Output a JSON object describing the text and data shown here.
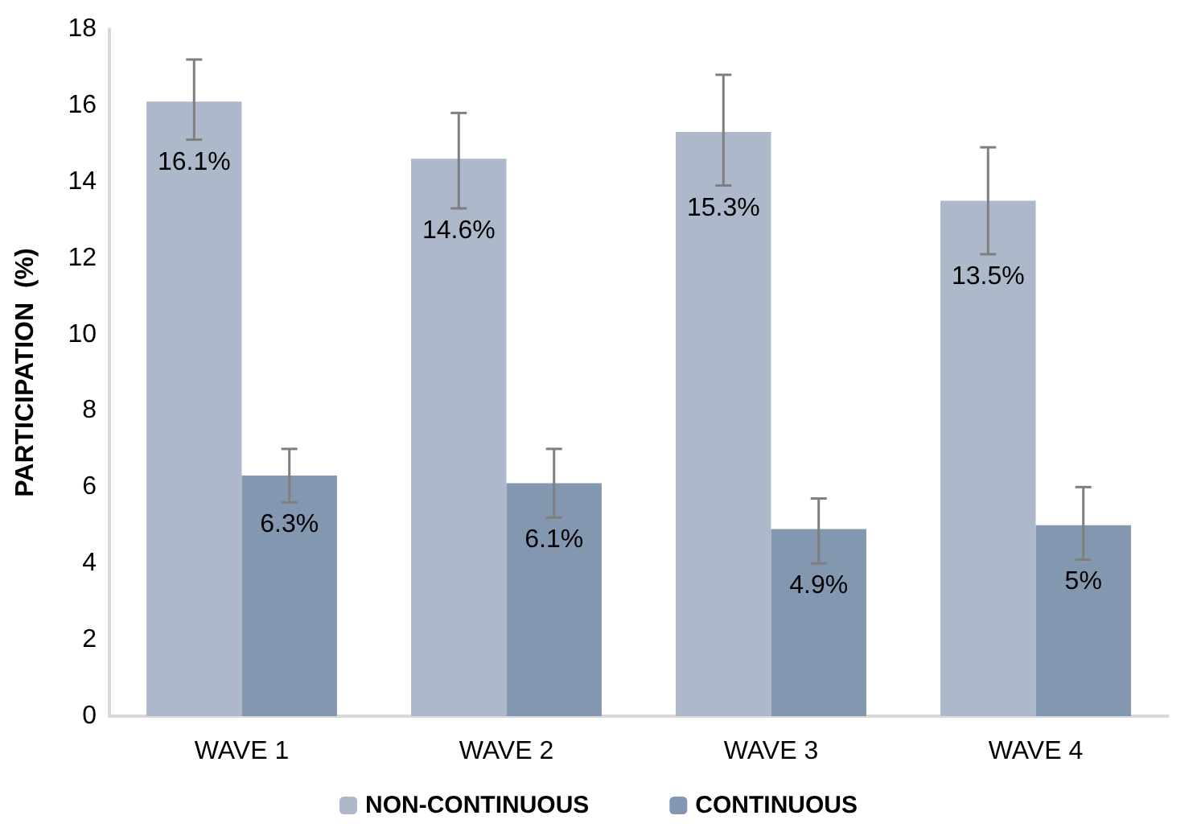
{
  "chart_data": {
    "type": "bar",
    "ylabel": "PARTICIPATION  (%)",
    "categories": [
      "WAVE 1",
      "WAVE 2",
      "WAVE 3",
      "WAVE 4"
    ],
    "series": [
      {
        "name": "NON-CONTINUOUS",
        "color": "#adb9ca",
        "values": [
          16.1,
          14.6,
          15.3,
          13.5
        ],
        "value_labels": [
          "16.1%",
          "14.6%",
          "15.3%",
          "13.5%"
        ],
        "errors": [
          [
            15.1,
            17.2
          ],
          [
            13.3,
            15.8
          ],
          [
            13.9,
            16.8
          ],
          [
            12.1,
            14.9
          ]
        ]
      },
      {
        "name": "CONTINUOUS",
        "color": "#8497b0",
        "values": [
          6.3,
          6.1,
          4.9,
          5
        ],
        "value_labels": [
          "6.3%",
          "6.1%",
          "4.9%",
          "5%"
        ],
        "errors": [
          [
            5.6,
            7.0
          ],
          [
            5.2,
            7.0
          ],
          [
            4.0,
            5.7
          ],
          [
            4.1,
            6.0
          ]
        ]
      }
    ],
    "ylim": [
      0,
      18
    ],
    "yticks": [
      0,
      2,
      4,
      6,
      8,
      10,
      12,
      14,
      16,
      18
    ],
    "grid": false,
    "legend": "bottom"
  }
}
